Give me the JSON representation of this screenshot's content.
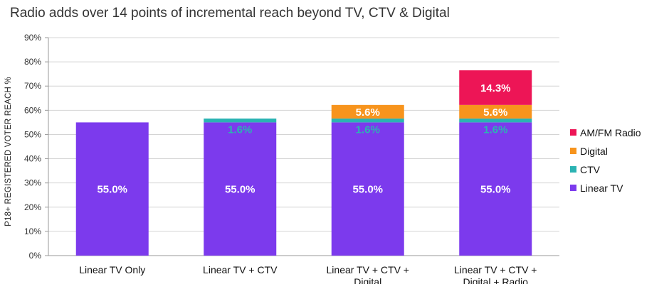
{
  "chart_data": {
    "type": "stacked-bar",
    "title": "Radio adds over 14 points of incremental reach beyond TV, CTV & Digital",
    "ylabel": "P18+ REGISTERED VOTER REACH %",
    "xlabel": "",
    "ylim": [
      0,
      90
    ],
    "yticks": [
      0,
      10,
      20,
      30,
      40,
      50,
      60,
      70,
      80,
      90
    ],
    "ytick_suffix": "%",
    "categories": [
      [
        "Linear TV Only"
      ],
      [
        "Linear TV + CTV"
      ],
      [
        "Linear TV + CTV +",
        "Digital"
      ],
      [
        "Linear TV + CTV +",
        "Digital + Radio"
      ]
    ],
    "series": [
      {
        "name": "Linear TV",
        "color": "#7c3aed",
        "label_color": "#ffffff",
        "values": [
          55.0,
          55.0,
          55.0,
          55.0
        ],
        "labels": [
          "55.0%",
          "55.0%",
          "55.0%",
          "55.0%"
        ]
      },
      {
        "name": "CTV",
        "color": "#2bb3b3",
        "label_color": "#2bb3b3",
        "values": [
          0,
          1.6,
          1.6,
          1.6
        ],
        "labels": [
          "",
          "1.6%",
          "1.6%",
          "1.6%"
        ]
      },
      {
        "name": "Digital",
        "color": "#f7941d",
        "label_color": "#ffffff",
        "values": [
          0,
          0,
          5.6,
          5.6
        ],
        "labels": [
          "",
          "",
          "5.6%",
          "5.6%"
        ]
      },
      {
        "name": "AM/FM Radio",
        "color": "#ed1556",
        "label_color": "#ffffff",
        "values": [
          0,
          0,
          0,
          14.3
        ],
        "labels": [
          "",
          "",
          "",
          "14.3%"
        ]
      }
    ],
    "legend_order": [
      "AM/FM Radio",
      "Digital",
      "CTV",
      "Linear TV"
    ],
    "legend_position": "right",
    "grid": true
  }
}
